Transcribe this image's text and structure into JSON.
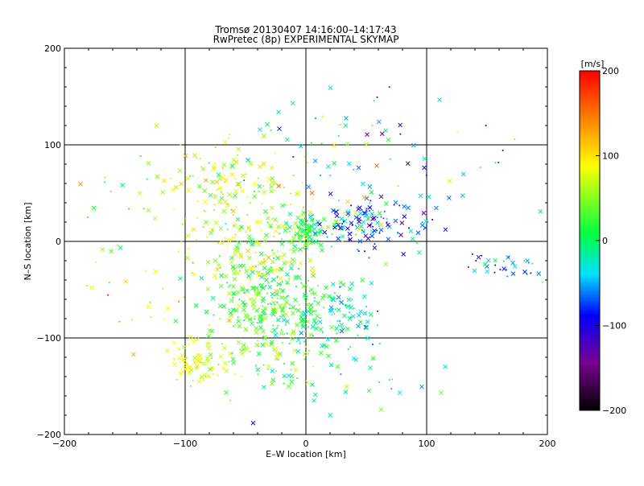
{
  "chart_data": {
    "type": "scatter",
    "title": "Tromsø 20130407 14:16:00–14:17:43",
    "subtitle": "RwPretec (8p) EXPERIMENTAL SKYMAP",
    "xlabel": "E–W location [km]",
    "ylabel": "N–S location [km]",
    "xlim": [
      -200,
      200
    ],
    "ylim": [
      -200,
      200
    ],
    "x_ticks": [
      -200,
      -100,
      0,
      100,
      200
    ],
    "y_ticks": [
      -200,
      -100,
      0,
      100,
      200
    ],
    "x_tick_labels": [
      "−200",
      "−100",
      "0",
      "100",
      "200"
    ],
    "y_tick_labels": [
      "−200",
      "−100",
      "0",
      "100",
      "200"
    ],
    "grid": true,
    "colorbar": {
      "label": "[m/s]",
      "range": [
        -200,
        200
      ],
      "ticks": [
        200,
        100,
        0,
        -100,
        -200
      ],
      "tick_labels": [
        "200",
        "100",
        "0",
        "−100",
        "−200"
      ],
      "colormap": [
        "#000000",
        "#7a0090",
        "#0000ff",
        "#00e0ff",
        "#00ff40",
        "#ffff00",
        "#ff8000",
        "#ff0000"
      ]
    },
    "marker_types": [
      "x",
      "dot"
    ],
    "clusters": [
      {
        "center": [
          0,
          10
        ],
        "spread": [
          8,
          10
        ],
        "value": 10,
        "value_spread": 20,
        "count": 90
      },
      {
        "center": [
          -30,
          -60
        ],
        "spread": [
          25,
          25
        ],
        "value": 20,
        "value_spread": 25,
        "count": 260
      },
      {
        "center": [
          -40,
          0
        ],
        "spread": [
          30,
          25
        ],
        "value": 60,
        "value_spread": 30,
        "count": 150
      },
      {
        "center": [
          -60,
          60
        ],
        "spread": [
          30,
          25
        ],
        "value": 60,
        "value_spread": 25,
        "count": 120
      },
      {
        "center": [
          -90,
          -125
        ],
        "spread": [
          12,
          12
        ],
        "value": 70,
        "value_spread": 20,
        "count": 60
      },
      {
        "center": [
          -40,
          -120
        ],
        "spread": [
          25,
          20
        ],
        "value": 40,
        "value_spread": 25,
        "count": 80
      },
      {
        "center": [
          50,
          20
        ],
        "spread": [
          25,
          12
        ],
        "value": -80,
        "value_spread": 40,
        "count": 120
      },
      {
        "center": [
          20,
          -80
        ],
        "spread": [
          25,
          20
        ],
        "value": -30,
        "value_spread": 25,
        "count": 100
      },
      {
        "center": [
          30,
          80
        ],
        "spread": [
          35,
          40
        ],
        "value": -20,
        "value_spread": 60,
        "count": 60
      },
      {
        "center": [
          160,
          -25
        ],
        "spread": [
          15,
          6
        ],
        "value": -60,
        "value_spread": 40,
        "count": 30
      },
      {
        "center": [
          -150,
          30
        ],
        "spread": [
          40,
          30
        ],
        "value": 40,
        "value_spread": 50,
        "count": 25
      },
      {
        "center": [
          -140,
          -80
        ],
        "spread": [
          30,
          30
        ],
        "value": 80,
        "value_spread": 40,
        "count": 20
      },
      {
        "center": [
          100,
          60
        ],
        "spread": [
          60,
          50
        ],
        "value": -60,
        "value_spread": 80,
        "count": 40
      },
      {
        "center": [
          40,
          -140
        ],
        "spread": [
          40,
          20
        ],
        "value": -20,
        "value_spread": 40,
        "count": 30
      }
    ]
  }
}
